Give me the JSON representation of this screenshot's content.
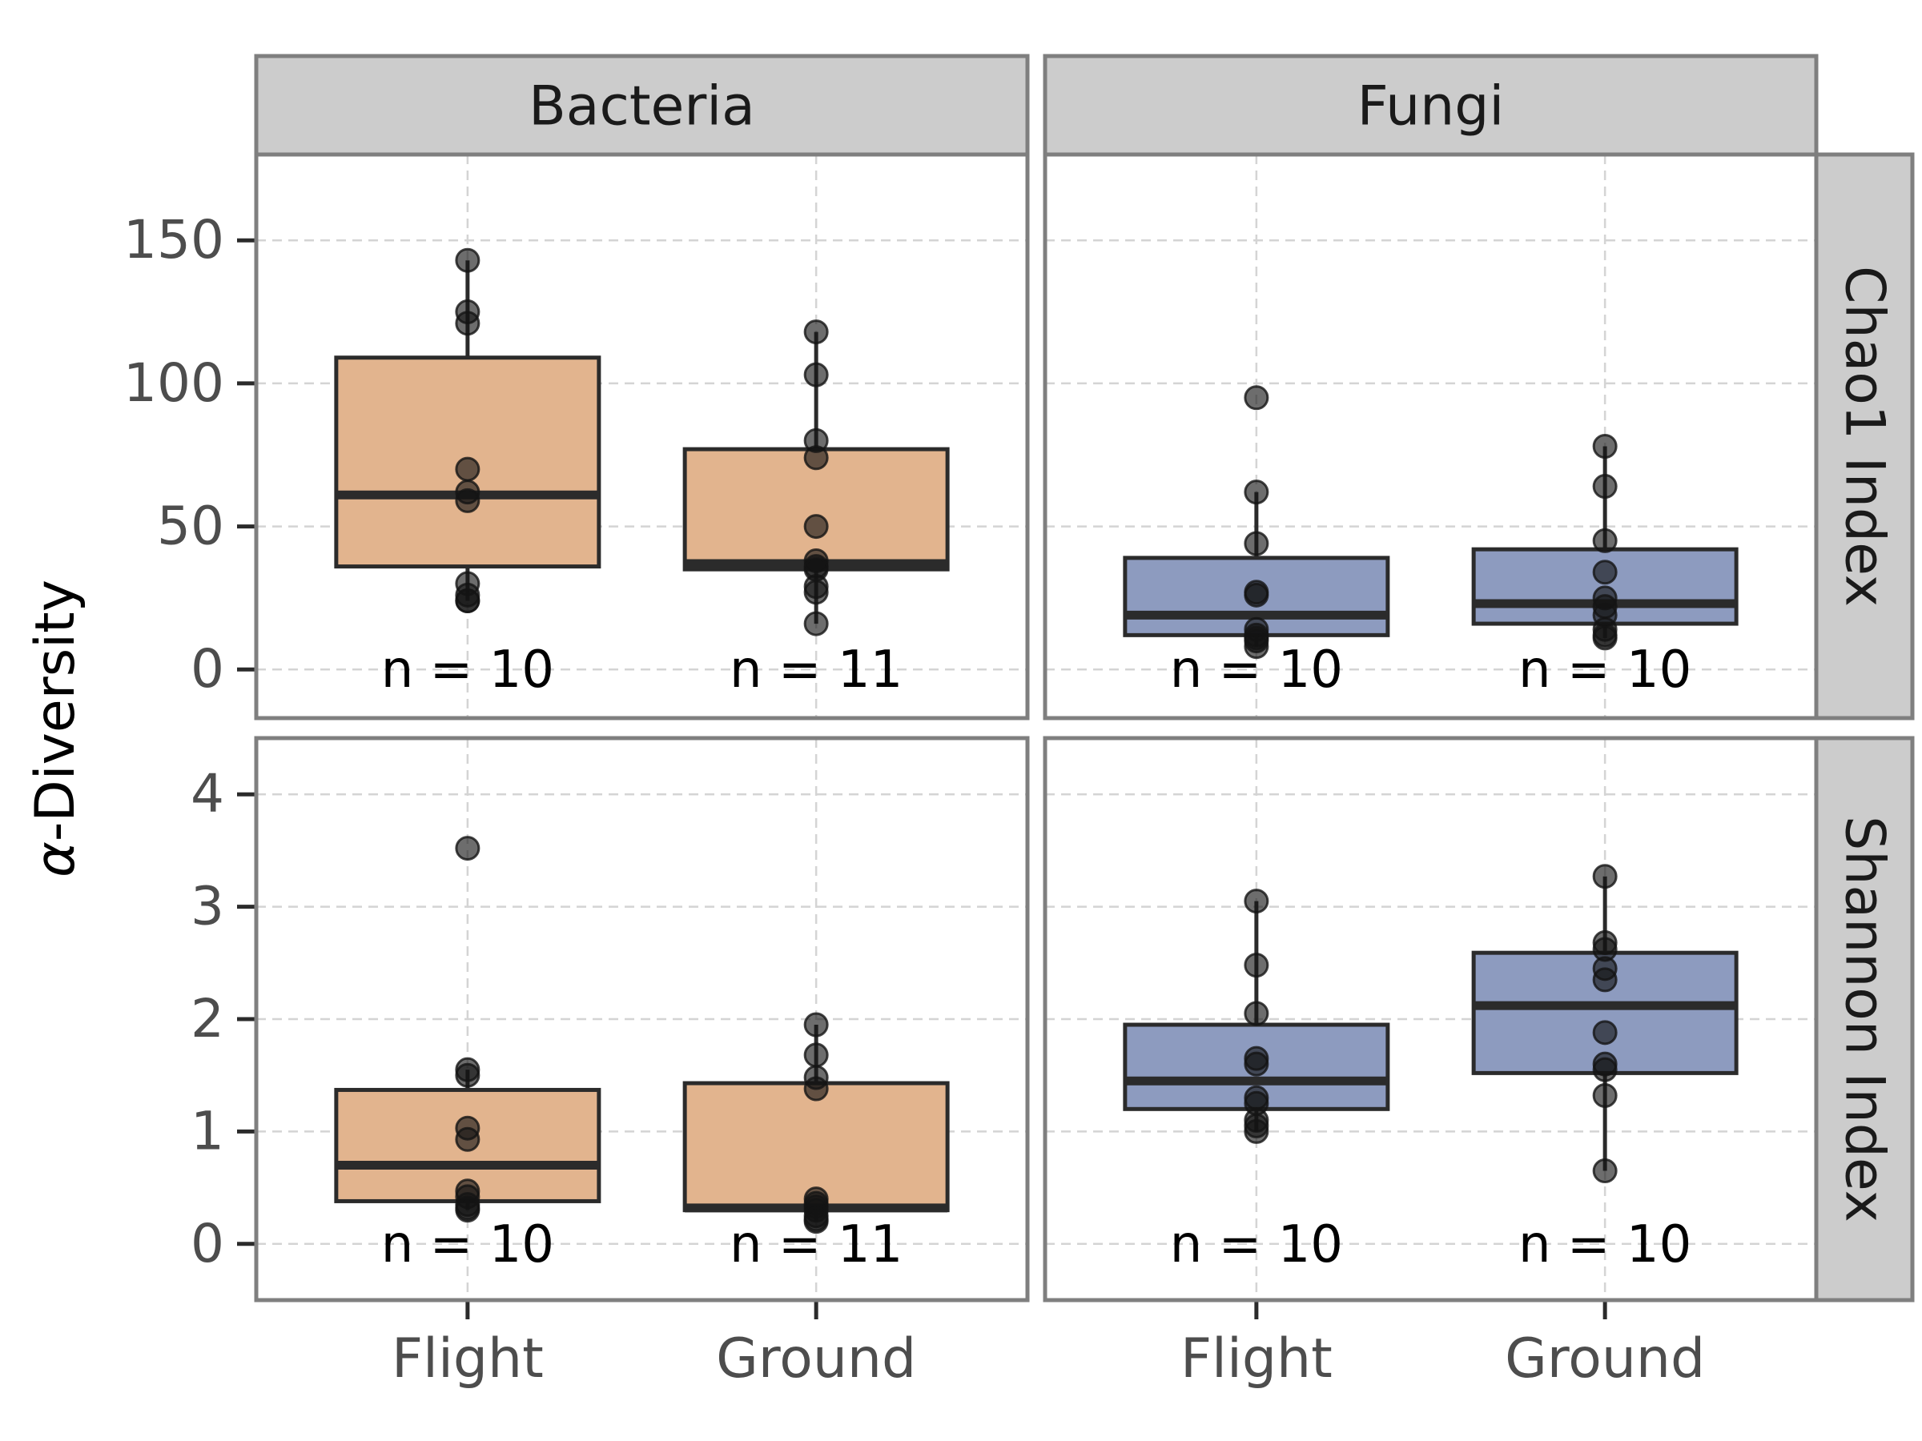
{
  "chart_data": {
    "type": "boxplot",
    "ylabel_prefix": "α",
    "ylabel_suffix": "-Diversity",
    "categories": [
      "Flight",
      "Ground"
    ],
    "columns": [
      "Bacteria",
      "Fungi"
    ],
    "rows": [
      "Chao1 Index",
      "Shannon Index"
    ],
    "fill_colors": {
      "Bacteria": "#e2b48e",
      "Fungi": "#8d9bbf"
    },
    "grid": "dashed",
    "row_scales": [
      {
        "row": "Chao1 Index",
        "ylim": [
          -17,
          180
        ],
        "ticks": [
          0,
          50,
          100,
          150
        ]
      },
      {
        "row": "Shannon Index",
        "ylim": [
          -0.5,
          4.5
        ],
        "ticks": [
          0,
          1,
          2,
          3,
          4
        ]
      }
    ],
    "panels": [
      {
        "column": "Bacteria",
        "row": "Chao1 Index",
        "boxes": [
          {
            "category": "Flight",
            "n_label": "n = 10",
            "whisker_low": 24,
            "q1": 36,
            "median": 61,
            "q3": 109,
            "whisker_high": 143,
            "points": [
              143,
              125,
              121,
              70,
              62,
              59,
              30,
              26,
              24,
              24
            ]
          },
          {
            "category": "Ground",
            "n_label": "n = 11",
            "whisker_low": 16,
            "q1": 35,
            "median": 37,
            "q3": 77,
            "whisker_high": 118,
            "points": [
              118,
              103,
              80,
              74,
              50,
              38,
              36,
              35,
              29,
              27,
              16
            ]
          }
        ]
      },
      {
        "column": "Fungi",
        "row": "Chao1 Index",
        "boxes": [
          {
            "category": "Flight",
            "n_label": "n = 10",
            "whisker_low": 8,
            "q1": 12,
            "median": 19,
            "q3": 39,
            "whisker_high": 62,
            "points": [
              95,
              62,
              44,
              27,
              26,
              14,
              12,
              11,
              10,
              8
            ]
          },
          {
            "category": "Ground",
            "n_label": "n = 10",
            "whisker_low": 11,
            "q1": 16,
            "median": 23,
            "q3": 42,
            "whisker_high": 78,
            "points": [
              78,
              64,
              45,
              34,
              25,
              22,
              19,
              14,
              12,
              11
            ]
          }
        ]
      },
      {
        "column": "Bacteria",
        "row": "Shannon Index",
        "boxes": [
          {
            "category": "Flight",
            "n_label": "n = 10",
            "whisker_low": 0.3,
            "q1": 0.38,
            "median": 0.7,
            "q3": 1.37,
            "whisker_high": 1.55,
            "points": [
              3.52,
              1.55,
              1.5,
              1.03,
              0.93,
              0.47,
              0.42,
              0.35,
              0.32,
              0.3
            ]
          },
          {
            "category": "Ground",
            "n_label": "n = 11",
            "whisker_low": 0.2,
            "q1": 0.3,
            "median": 0.32,
            "q3": 1.43,
            "whisker_high": 1.95,
            "points": [
              1.95,
              1.68,
              1.48,
              1.38,
              0.4,
              0.36,
              0.33,
              0.3,
              0.25,
              0.22,
              0.2
            ]
          }
        ]
      },
      {
        "column": "Fungi",
        "row": "Shannon Index",
        "boxes": [
          {
            "category": "Flight",
            "n_label": "n = 10",
            "whisker_low": 1.0,
            "q1": 1.2,
            "median": 1.45,
            "q3": 1.95,
            "whisker_high": 3.05,
            "points": [
              3.05,
              2.48,
              2.05,
              1.65,
              1.6,
              1.3,
              1.25,
              1.1,
              1.05,
              1.0
            ]
          },
          {
            "category": "Ground",
            "n_label": "n = 10",
            "whisker_low": 0.65,
            "q1": 1.52,
            "median": 2.12,
            "q3": 2.59,
            "whisker_high": 3.27,
            "points": [
              3.27,
              2.68,
              2.62,
              2.45,
              2.35,
              1.88,
              1.6,
              1.55,
              1.32,
              0.65
            ]
          }
        ]
      }
    ]
  }
}
